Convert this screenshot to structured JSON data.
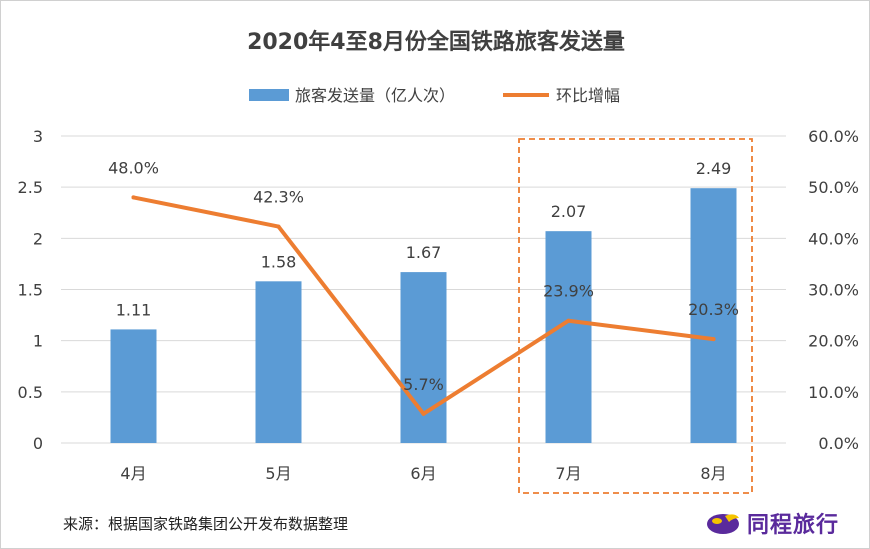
{
  "chart_data": {
    "type": "bar+line",
    "title": "2020年4至8月份全国铁路旅客发送量",
    "categories": [
      "4月",
      "5月",
      "6月",
      "7月",
      "8月"
    ],
    "series": [
      {
        "name": "旅客发送量（亿人次）",
        "type": "bar",
        "axis": "left",
        "values": [
          1.11,
          1.58,
          1.67,
          2.07,
          2.49
        ],
        "labels": [
          "1.11",
          "1.58",
          "1.67",
          "2.07",
          "2.49"
        ],
        "color": "#5b9bd5"
      },
      {
        "name": "环比增幅",
        "type": "line",
        "axis": "right",
        "values": [
          48.0,
          42.3,
          5.7,
          23.9,
          20.3
        ],
        "labels": [
          "48.0%",
          "42.3%",
          "5.7%",
          "23.9%",
          "20.3%"
        ],
        "color": "#ed7d31"
      }
    ],
    "y_left": {
      "min": 0,
      "max": 3,
      "ticks": [
        "0",
        "0.5",
        "1",
        "1.5",
        "2",
        "2.5",
        "3"
      ]
    },
    "y_right": {
      "min": 0,
      "max": 60,
      "ticks": [
        "0.0%",
        "10.0%",
        "20.0%",
        "30.0%",
        "40.0%",
        "50.0%",
        "60.0%"
      ]
    },
    "grid": true,
    "legend_position": "top",
    "highlight": {
      "categories": [
        "7月",
        "8月"
      ],
      "style": "dashed box",
      "color": "#ed7d31"
    }
  },
  "footer": {
    "source": "来源：根据国家铁路集团公开发布数据整理",
    "brand": "同程旅行"
  },
  "colors": {
    "brand": "#5a2a9c",
    "brand_accent": "#f5c400"
  }
}
